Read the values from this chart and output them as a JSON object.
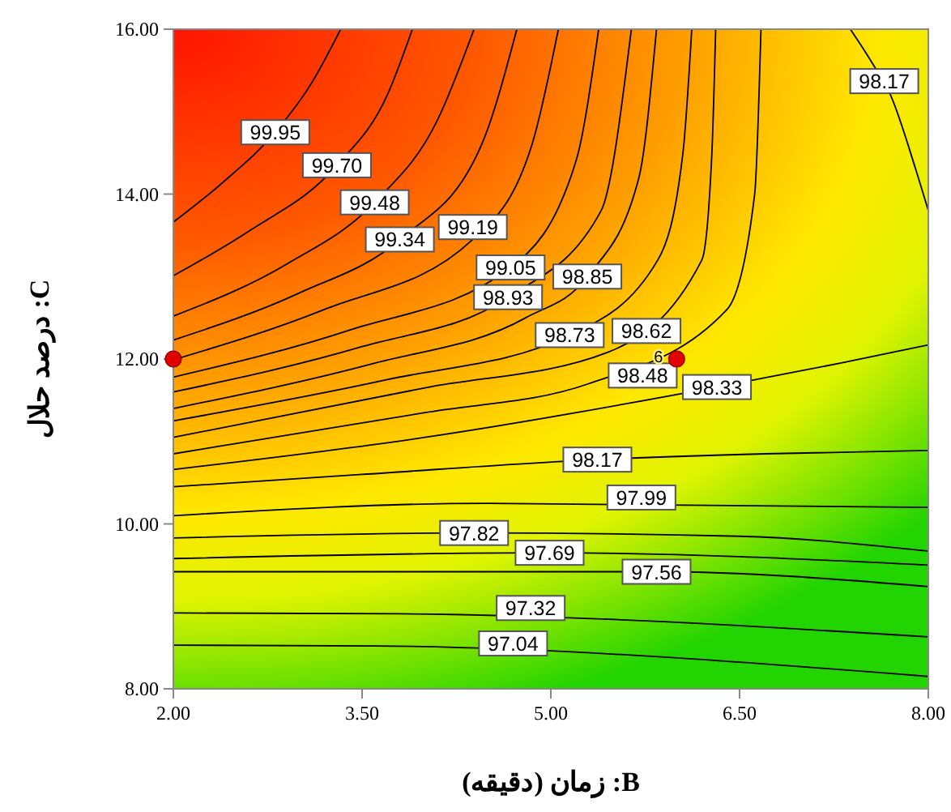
{
  "chart_data": {
    "type": "line",
    "xlabel": "B: زمان (دقیقه)",
    "ylabel": "C: درصد حلال",
    "xlim": [
      2,
      8
    ],
    "ylim": [
      8,
      16
    ],
    "xticks": [
      {
        "value": 2,
        "label": "2.00"
      },
      {
        "value": 3.5,
        "label": "3.50"
      },
      {
        "value": 5,
        "label": "5.00"
      },
      {
        "value": 6.5,
        "label": "6.50"
      },
      {
        "value": 8,
        "label": "8.00"
      }
    ],
    "yticks": [
      {
        "value": 8,
        "label": "8.00"
      },
      {
        "value": 10,
        "label": "10.00"
      },
      {
        "value": 12,
        "label": "12.00"
      },
      {
        "value": 14,
        "label": "14.00"
      },
      {
        "value": 16,
        "label": "16.00"
      }
    ],
    "grid": false,
    "series": [
      {
        "type": "line",
        "color": "#000000",
        "x": [
          2,
          2.4,
          2.81,
          3.1,
          3.33
        ],
        "values": [
          13.66,
          14.15,
          14.75,
          15.35,
          16
        ]
      },
      {
        "type": "line",
        "color": "#000000",
        "x": [
          2,
          2.6,
          3.3,
          3.7,
          3.9
        ],
        "values": [
          13.01,
          13.55,
          14.35,
          15.2,
          16
        ]
      },
      {
        "type": "line",
        "color": "#000000",
        "x": [
          2,
          2.9,
          3.6,
          4.1,
          4.39
        ],
        "values": [
          12.52,
          13.15,
          13.9,
          14.9,
          16
        ]
      },
      {
        "type": "line",
        "color": "#000000",
        "x": [
          2,
          3,
          3.8,
          4.45,
          4.73
        ],
        "values": [
          12.23,
          12.8,
          13.45,
          14.6,
          16
        ]
      },
      {
        "type": "line",
        "color": "#000000",
        "x": [
          2,
          3.2,
          4.38,
          4.85,
          5.06
        ],
        "values": [
          11.99,
          12.6,
          13.45,
          14.6,
          16
        ]
      },
      {
        "type": "line",
        "color": "#000000",
        "x": [
          2,
          3.4,
          4.68,
          5.2,
          5.38
        ],
        "values": [
          11.78,
          12.35,
          13.11,
          14.4,
          16
        ]
      },
      {
        "type": "line",
        "color": "#000000",
        "x": [
          2,
          3.5,
          4.66,
          5.4,
          5.64
        ],
        "values": [
          11.6,
          12.15,
          12.75,
          13.8,
          16
        ]
      },
      {
        "type": "line",
        "color": "#000000",
        "x": [
          2,
          3.6,
          4.8,
          5.29,
          5.7,
          5.84
        ],
        "values": [
          11.4,
          11.95,
          12.5,
          13,
          14.2,
          16
        ]
      },
      {
        "type": "line",
        "color": "#000000",
        "x": [
          2,
          3.7,
          5.15,
          5.85,
          6.05,
          6.12
        ],
        "values": [
          11.25,
          11.75,
          12.29,
          13.2,
          14.5,
          16
        ]
      },
      {
        "type": "line",
        "color": "#000000",
        "x": [
          2,
          4,
          5.45,
          6.2,
          6.28,
          6.31
        ],
        "values": [
          11.05,
          11.65,
          12.08,
          13.2,
          14.5,
          16
        ]
      },
      {
        "type": "line",
        "color": "#000000",
        "x": [
          2,
          4,
          5.3,
          6.4,
          6.62,
          6.67
        ],
        "values": [
          10.85,
          11.35,
          11.7,
          12.6,
          14,
          16
        ]
      },
      {
        "type": "line",
        "color": "#000000",
        "x": [
          2,
          4,
          6.32,
          7.3,
          8
        ],
        "values": [
          10.66,
          11.05,
          11.66,
          11.95,
          12.17
        ]
      },
      {
        "type": "line",
        "color": "#000000",
        "x": [
          2,
          3.5,
          5.37,
          6.7,
          8
        ],
        "values": [
          10.45,
          10.6,
          10.78,
          10.85,
          10.89
        ]
      },
      {
        "type": "line",
        "color": "#000000",
        "x": [
          7.38,
          7.55,
          7.7,
          7.9,
          8
        ],
        "values": [
          16,
          15.6,
          15.2,
          14.3,
          13.8
        ]
      },
      {
        "type": "line",
        "color": "#000000",
        "x": [
          2,
          4.5,
          8
        ],
        "values": [
          10.1,
          10.25,
          10.2
        ]
      },
      {
        "type": "line",
        "color": "#000000",
        "x": [
          2,
          4.39,
          6.5,
          8
        ],
        "values": [
          9.83,
          9.89,
          9.85,
          9.67
        ]
      },
      {
        "type": "line",
        "color": "#000000",
        "x": [
          2,
          4.99,
          8
        ],
        "values": [
          9.58,
          9.65,
          9.5
        ]
      },
      {
        "type": "line",
        "color": "#000000",
        "x": [
          2,
          5.84,
          8
        ],
        "values": [
          9.42,
          9.42,
          9.24
        ]
      },
      {
        "type": "line",
        "color": "#000000",
        "x": [
          2,
          3.8,
          8
        ],
        "values": [
          8.92,
          8.91,
          8.63
        ]
      },
      {
        "type": "line",
        "color": "#000000",
        "x": [
          2,
          3.6,
          8
        ],
        "values": [
          8.53,
          8.52,
          8.15
        ]
      },
      {
        "type": "scatter",
        "marker": "circle",
        "color": "#e00000",
        "x": [
          2,
          6
        ],
        "values": [
          12,
          12
        ]
      }
    ],
    "annotations": [
      {
        "text": "99.95",
        "x": 2.81,
        "y": 14.75
      },
      {
        "text": "99.70",
        "x": 3.3,
        "y": 14.35
      },
      {
        "text": "99.48",
        "x": 3.6,
        "y": 13.9
      },
      {
        "text": "99.34",
        "x": 3.8,
        "y": 13.45
      },
      {
        "text": "99.19",
        "x": 4.38,
        "y": 13.6
      },
      {
        "text": "99.05",
        "x": 4.68,
        "y": 13.11
      },
      {
        "text": "98.93",
        "x": 4.66,
        "y": 12.75
      },
      {
        "text": "98.85",
        "x": 5.29,
        "y": 13
      },
      {
        "text": "98.73",
        "x": 5.15,
        "y": 12.29
      },
      {
        "text": "98.62",
        "x": 5.76,
        "y": 12.34
      },
      {
        "text": "98.48",
        "x": 5.73,
        "y": 11.8
      },
      {
        "text": "98.33",
        "x": 6.32,
        "y": 11.66
      },
      {
        "text": "98.17",
        "x": 5.37,
        "y": 10.78
      },
      {
        "text": "98.17",
        "x": 7.65,
        "y": 15.37
      },
      {
        "text": "97.99",
        "x": 5.72,
        "y": 10.32
      },
      {
        "text": "97.82",
        "x": 4.39,
        "y": 9.89
      },
      {
        "text": "97.69",
        "x": 4.99,
        "y": 9.65
      },
      {
        "text": "97.56",
        "x": 5.84,
        "y": 9.42
      },
      {
        "text": "97.32",
        "x": 4.84,
        "y": 8.98
      },
      {
        "text": "97.04",
        "x": 4.7,
        "y": 8.55
      },
      {
        "text": "6",
        "x": 6,
        "y": 12
      }
    ]
  }
}
